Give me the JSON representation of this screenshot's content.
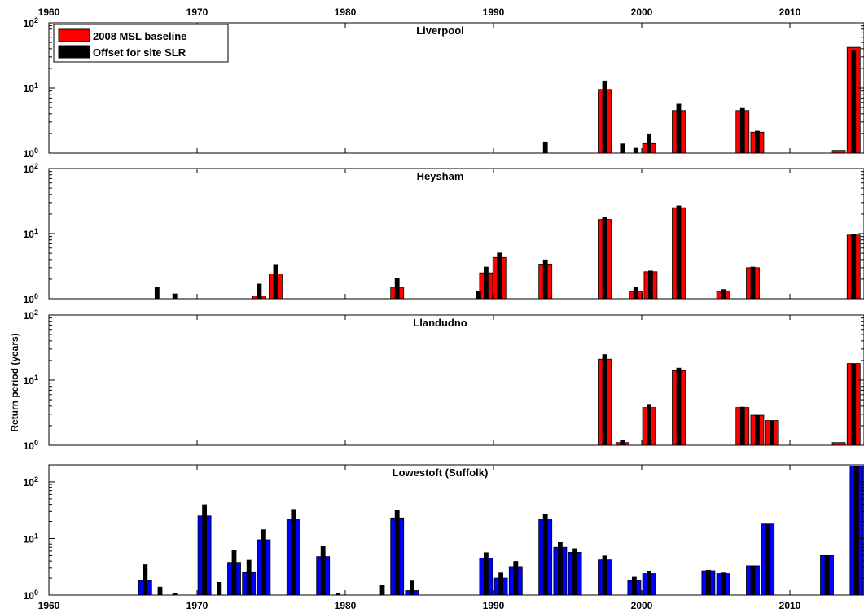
{
  "chart_data": {
    "type": "bar",
    "ylabel": "Return period (years)",
    "xlim": [
      1960,
      2015
    ],
    "x_ticks": [
      "1960",
      "1970",
      "1980",
      "1990",
      "2000",
      "2010"
    ],
    "y_tick_base": "10",
    "legend": {
      "placement": "top-left",
      "entries": [
        {
          "name": "2008 MSL baseline",
          "color": "#ff0000"
        },
        {
          "name": "Offset for site SLR",
          "color": "#000000"
        }
      ]
    },
    "colors": {
      "baseline": "#ff0000",
      "lowestoft": "#0000ff",
      "slr": "#000000"
    },
    "panels": [
      {
        "title": "Liverpool",
        "ylim": [
          1,
          100
        ],
        "y_ticks": [
          {
            "b": "10",
            "e": "0"
          },
          {
            "b": "10",
            "e": "1"
          },
          {
            "b": "10",
            "e": "2"
          }
        ],
        "series": [
          {
            "name": "2008 MSL baseline",
            "x": [
              1997.5,
              2000.5,
              2002.5,
              2006.8,
              2007.8,
              2013.3,
              2014.3
            ],
            "values": [
              9.5,
              1.4,
              4.5,
              4.5,
              2.1,
              1.1,
              42
            ]
          },
          {
            "name": "Offset for site SLR",
            "x": [
              1993.5,
              1997.5,
              1998.7,
              1999.6,
              2000.5,
              2002.5,
              2006.8,
              2007.8,
              2014.3
            ],
            "values": [
              1.5,
              13,
              1.4,
              1.2,
              2.0,
              5.7,
              4.9,
              2.2,
              38
            ]
          }
        ]
      },
      {
        "title": "Heysham",
        "ylim": [
          1,
          100
        ],
        "y_ticks": [
          {
            "b": "10",
            "e": "0"
          },
          {
            "b": "10",
            "e": "1"
          },
          {
            "b": "10",
            "e": "2"
          }
        ],
        "series": [
          {
            "name": "2008 MSL baseline",
            "x": [
              1974.2,
              1975.3,
              1983.5,
              1989.5,
              1990.4,
              1993.5,
              1997.5,
              1999.6,
              2000.6,
              2002.5,
              2005.5,
              2007.5,
              2014.3
            ],
            "values": [
              1.1,
              2.4,
              1.5,
              2.5,
              4.3,
              3.4,
              16.5,
              1.3,
              2.6,
              25,
              1.3,
              3.0,
              9.5
            ]
          },
          {
            "name": "Offset for site SLR",
            "x": [
              1967.3,
              1968.5,
              1974.2,
              1975.3,
              1983.5,
              1989.0,
              1989.5,
              1990.4,
              1993.5,
              1997.5,
              1999.6,
              2000.6,
              2002.5,
              2005.5,
              2007.5,
              2014.3
            ],
            "values": [
              1.5,
              1.2,
              1.7,
              3.4,
              2.1,
              1.3,
              3.1,
              5.1,
              4.0,
              18,
              1.5,
              2.7,
              27,
              1.4,
              3.1,
              9.8
            ]
          }
        ]
      },
      {
        "title": "Llandudno",
        "ylim": [
          1,
          100
        ],
        "y_ticks": [
          {
            "b": "10",
            "e": "0"
          },
          {
            "b": "10",
            "e": "1"
          },
          {
            "b": "10",
            "e": "2"
          }
        ],
        "series": [
          {
            "name": "2008 MSL baseline",
            "x": [
              1997.5,
              1998.7,
              2000.5,
              2002.5,
              2006.8,
              2007.8,
              2008.8,
              2013.3,
              2014.3
            ],
            "values": [
              21,
              1.1,
              3.8,
              14,
              3.8,
              2.9,
              2.4,
              1.1,
              18
            ]
          },
          {
            "name": "Offset for site SLR",
            "x": [
              1997.5,
              1998.7,
              2000.5,
              2002.5,
              2006.8,
              2007.8,
              2008.8,
              2014.3
            ],
            "values": [
              25,
              1.2,
              4.3,
              15.5,
              3.9,
              2.9,
              2.4,
              18
            ]
          }
        ]
      },
      {
        "title": "Lowestoft (Suffolk)",
        "ylim": [
          1,
          200
        ],
        "y_ticks": [
          {
            "b": "10",
            "e": "0"
          },
          {
            "b": "10",
            "e": "1"
          },
          {
            "b": "10",
            "e": "2"
          }
        ],
        "series": [
          {
            "name": "2008 MSL baseline",
            "x": [
              1966.5,
              1970.5,
              1972.5,
              1973.5,
              1974.5,
              1976.5,
              1978.5,
              1983.5,
              1984.5,
              1989.5,
              1990.5,
              1991.5,
              1993.5,
              1994.5,
              1995.5,
              1997.5,
              1999.5,
              2000.5,
              2004.5,
              2005.5,
              2007.5,
              2008.5,
              2012.5,
              2014.5
            ],
            "values": [
              1.8,
              25,
              3.8,
              2.5,
              9.5,
              22,
              4.8,
              23,
              1.2,
              4.5,
              2.0,
              3.2,
              22,
              7.0,
              5.7,
              4.2,
              1.8,
              2.4,
              2.7,
              2.4,
              3.3,
              18,
              5.0,
              190
            ]
          },
          {
            "name": "Offset for site SLR",
            "x": [
              1966.5,
              1967.5,
              1968.5,
              1970.5,
              1971.5,
              1972.5,
              1973.5,
              1974.5,
              1976.5,
              1978.5,
              1979.5,
              1982.5,
              1983.5,
              1984.5,
              1989.5,
              1990.5,
              1991.5,
              1993.5,
              1994.5,
              1995.5,
              1997.5,
              1999.5,
              2000.5,
              2004.5,
              2005.5,
              2007.5,
              2008.5,
              2012.5,
              2014.5
            ],
            "values": [
              3.5,
              1.4,
              1.1,
              40,
              1.7,
              6.2,
              4.2,
              14.5,
              33,
              7.3,
              1.1,
              1.5,
              32,
              1.8,
              5.7,
              2.5,
              4.0,
              27,
              8.6,
              6.7,
              5.0,
              2.1,
              2.7,
              2.8,
              2.5,
              3.3,
              18,
              5.0,
              190
            ]
          }
        ]
      }
    ]
  }
}
